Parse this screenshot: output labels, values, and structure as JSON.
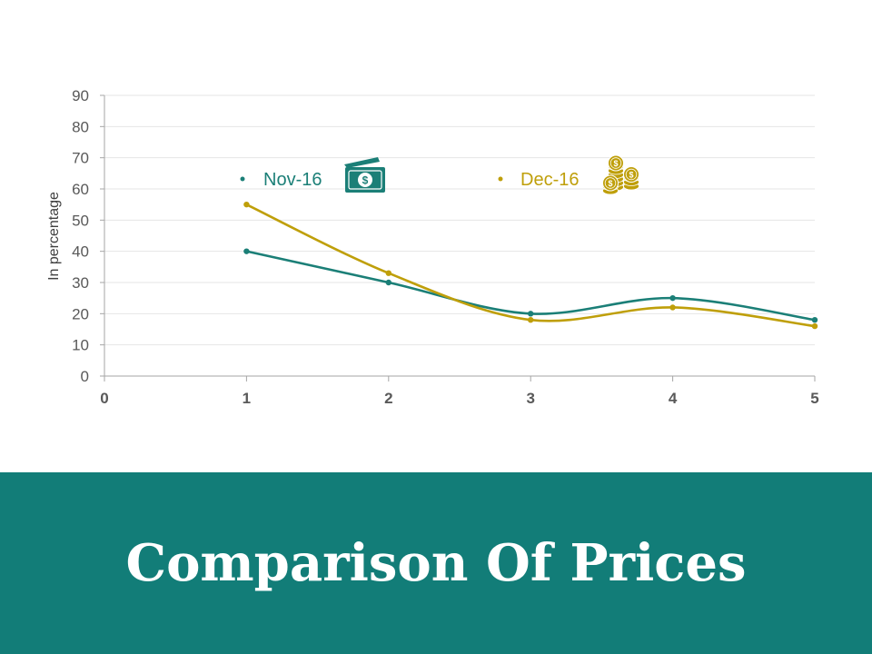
{
  "page": {
    "title": "Comparison Of Prices",
    "banner_color": "#127D78"
  },
  "legend": {
    "items": [
      {
        "label": "Nov-16",
        "color": "#1B7F77",
        "icon": "money-bill-icon"
      },
      {
        "label": "Dec-16",
        "color": "#BF9F0A",
        "icon": "coin-stack-icon"
      }
    ]
  },
  "chart_data": {
    "type": "line",
    "title": "",
    "xlabel": "",
    "ylabel": "In percentage",
    "xlim": [
      0,
      5
    ],
    "ylim": [
      0,
      90
    ],
    "x_ticks": [
      0,
      1,
      2,
      3,
      4,
      5
    ],
    "y_ticks": [
      0,
      10,
      20,
      30,
      40,
      50,
      60,
      70,
      80,
      90
    ],
    "grid": true,
    "smooth": true,
    "legend_position": "top",
    "x": [
      1,
      2,
      3,
      4,
      5
    ],
    "series": [
      {
        "name": "Nov-16",
        "color": "#1B7F77",
        "values": [
          40,
          30,
          20,
          25,
          18
        ]
      },
      {
        "name": "Dec-16",
        "color": "#BF9F0A",
        "values": [
          55,
          33,
          18,
          22,
          16
        ]
      }
    ]
  }
}
